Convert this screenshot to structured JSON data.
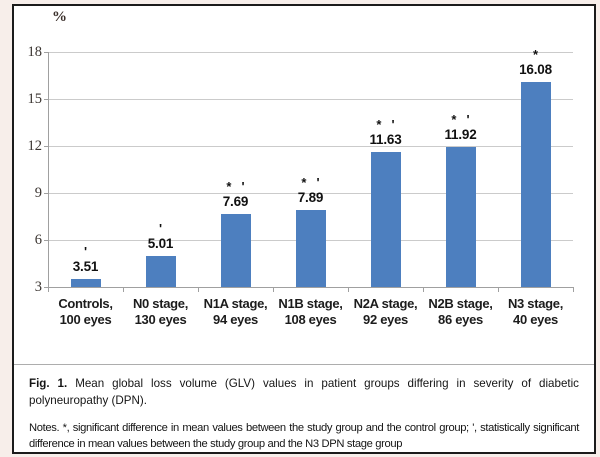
{
  "chart_data": {
    "type": "bar",
    "title": "",
    "unit_label": "%",
    "categories": [
      [
        "Controls,",
        "100 eyes"
      ],
      [
        "N0 stage,",
        "130 eyes"
      ],
      [
        "N1A stage,",
        "94 eyes"
      ],
      [
        "N1B stage,",
        "108 eyes"
      ],
      [
        "N2A stage,",
        "92 eyes"
      ],
      [
        "N2B stage,",
        "86 eyes"
      ],
      [
        "N3 stage,",
        "40 eyes"
      ]
    ],
    "values": [
      3.51,
      5.01,
      7.69,
      7.89,
      11.63,
      11.92,
      16.08
    ],
    "data_labels": [
      "3.51",
      "5.01",
      "7.69",
      "7.89",
      "11.63",
      "11.92",
      "16.08"
    ],
    "marks": [
      [
        "'"
      ],
      [
        "'"
      ],
      [
        "*",
        "'"
      ],
      [
        "*",
        "'"
      ],
      [
        "*",
        "'"
      ],
      [
        "*",
        "'"
      ],
      [
        "*"
      ]
    ],
    "y_ticks": [
      3,
      6,
      9,
      12,
      15,
      18
    ],
    "ylim": [
      3,
      18
    ],
    "xlabel": "",
    "ylabel": "%",
    "grid": true,
    "legend": "none",
    "bar_color": "#4d7fbf",
    "gridline_color": "#cbcbcb",
    "axis_color": "#a0a0a0"
  },
  "caption": {
    "fig_label": "Fig. 1.",
    "fig_text": "Mean global loss volume (GLV) values in patient groups differing in severity of diabetic polyneuropathy (DPN).",
    "notes_label": "Notes.",
    "notes_text": "*, significant difference in mean values between the study group and the control group; ', statistically significant difference in mean values between the study group and the N3 DPN stage group"
  }
}
